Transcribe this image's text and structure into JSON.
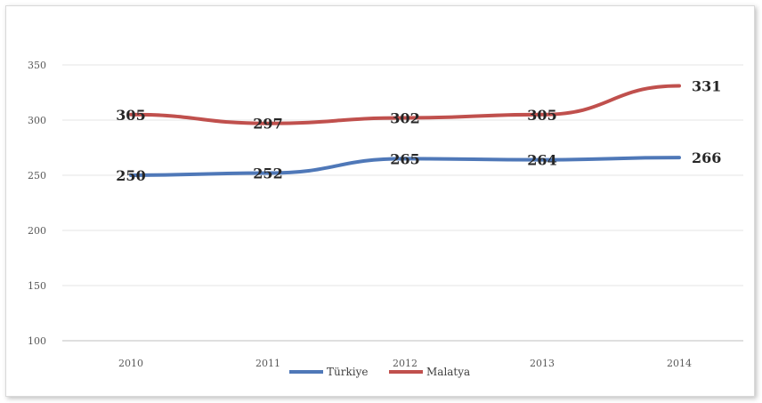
{
  "chart_data": {
    "type": "line",
    "categories": [
      "2010",
      "2011",
      "2012",
      "2013",
      "2014"
    ],
    "series": [
      {
        "name": "Türkiye",
        "color": "#4f78b8",
        "values": [
          250,
          252,
          265,
          264,
          266
        ],
        "labels": [
          "250",
          "252",
          "265",
          "264",
          "266"
        ]
      },
      {
        "name": "Malatya",
        "color": "#c0504d",
        "values": [
          305,
          297,
          302,
          305,
          331
        ],
        "labels": [
          "305",
          "297",
          "302",
          "305",
          "331"
        ]
      }
    ],
    "ylim": [
      100,
      350
    ],
    "yticks": [
      "100",
      "150",
      "200",
      "250",
      "300",
      "350"
    ],
    "grid": true,
    "legend_position": "bottom"
  }
}
